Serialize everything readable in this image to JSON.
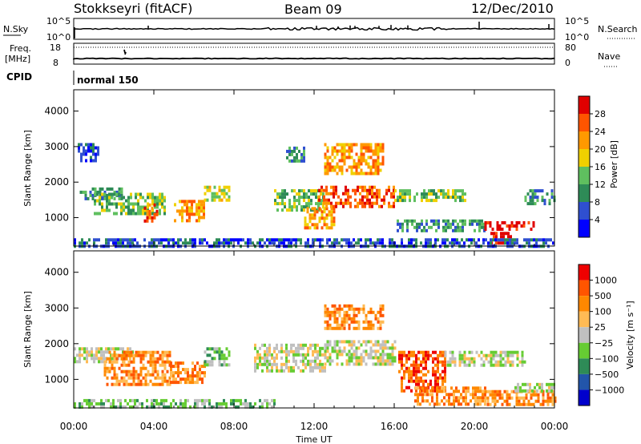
{
  "header": {
    "station": "Stokkseyri (fitACF)",
    "beam": "Beam 09",
    "date": "12/Dec/2010"
  },
  "status_panels": {
    "nsky_label": "N.Sky",
    "nsky_ticks": [
      "10^5",
      "10^0"
    ],
    "nsearch_label": "N.Search",
    "nsearch_ticks": [
      "10^5",
      "10^0"
    ],
    "freq_label": "Freq.",
    "freq_unit": "[MHz]",
    "freq_ticks": [
      "18",
      "8"
    ],
    "nave_label": "Nave",
    "nave_ticks": [
      "80",
      "0"
    ],
    "cpid_label": "CPID",
    "cpid_value": "normal 150"
  },
  "colors": {
    "scale": [
      "#0000ff",
      "#2f4fd0",
      "#2e8b57",
      "#5fbf5f",
      "#f0d000",
      "#ff9900",
      "#ff5500",
      "#e00000"
    ],
    "velocity_scale": [
      "#0000cc",
      "#2255aa",
      "#2e8b57",
      "#66cc33",
      "#c0c0c0",
      "#ffbb55",
      "#ff8800",
      "#ff5500",
      "#ee0000"
    ],
    "ground_scatter": "#b8b8b8"
  },
  "chart_data": [
    {
      "type": "heatmap",
      "name_panel": "power",
      "ylabel": "Slant Range [km]",
      "y_ticks": [
        1000,
        2000,
        3000,
        4000
      ],
      "ylim": [
        200,
        4600
      ],
      "colorbar": {
        "label": "Power [dB]",
        "ticks": [
          "4",
          "8",
          "12",
          "16",
          "20",
          "24",
          "28"
        ],
        "range": [
          0,
          30
        ]
      },
      "regions": [
        {
          "t0": 0.3,
          "t1": 2.5,
          "r0": 1500,
          "r1": 1850,
          "level": 2
        },
        {
          "t0": 0.2,
          "t1": 1.2,
          "r0": 2600,
          "r1": 3100,
          "level": 1
        },
        {
          "t0": 1.0,
          "t1": 4.5,
          "r0": 1100,
          "r1": 1700,
          "level": 3
        },
        {
          "t0": 3.5,
          "t1": 4.2,
          "r0": 900,
          "r1": 1400,
          "level": 6
        },
        {
          "t0": 5.0,
          "t1": 6.5,
          "r0": 900,
          "r1": 1500,
          "level": 5
        },
        {
          "t0": 6.5,
          "t1": 7.8,
          "r0": 1500,
          "r1": 1900,
          "level": 4
        },
        {
          "t0": 10.0,
          "t1": 12.5,
          "r0": 1200,
          "r1": 1800,
          "level": 3
        },
        {
          "t0": 10.6,
          "t1": 11.5,
          "r0": 2600,
          "r1": 3000,
          "level": 2
        },
        {
          "t0": 11.5,
          "t1": 13.0,
          "r0": 700,
          "r1": 1300,
          "level": 5
        },
        {
          "t0": 12.2,
          "t1": 16.0,
          "r0": 1300,
          "r1": 1900,
          "level": 6
        },
        {
          "t0": 12.5,
          "t1": 15.5,
          "r0": 2200,
          "r1": 3100,
          "level": 5
        },
        {
          "t0": 16.0,
          "t1": 19.5,
          "r0": 1500,
          "r1": 1800,
          "level": 3
        },
        {
          "t0": 16.0,
          "t1": 20.5,
          "r0": 600,
          "r1": 950,
          "level": 2
        },
        {
          "t0": 20.5,
          "t1": 23.0,
          "r0": 700,
          "r1": 900,
          "level": 7
        },
        {
          "t0": 20.8,
          "t1": 21.8,
          "r0": 250,
          "r1": 600,
          "level": 7
        },
        {
          "t0": 22.5,
          "t1": 24.0,
          "r0": 1400,
          "r1": 1800,
          "level": 2
        },
        {
          "t0": 0.0,
          "t1": 24.0,
          "r0": 200,
          "r1": 420,
          "level": 1
        }
      ]
    },
    {
      "type": "heatmap",
      "name_panel": "velocity",
      "ylabel": "Slant Range [km]",
      "xlabel": "Time UT",
      "x_ticks": [
        "00:00",
        "04:00",
        "08:00",
        "12:00",
        "16:00",
        "20:00",
        "00:00"
      ],
      "y_ticks": [
        1000,
        2000,
        3000,
        4000
      ],
      "ylim": [
        200,
        4600
      ],
      "colorbar": {
        "label": "Velocity [m s⁻¹]",
        "ticks": [
          "1000",
          "500",
          "100",
          "25",
          "−25",
          "−100",
          "−500",
          "−1000"
        ]
      },
      "regions": [
        {
          "t0": 0.0,
          "t1": 3.0,
          "r0": 1500,
          "r1": 1900,
          "level": 4
        },
        {
          "t0": 1.5,
          "t1": 4.8,
          "r0": 900,
          "r1": 1800,
          "level": 6
        },
        {
          "t0": 4.8,
          "t1": 6.5,
          "r0": 900,
          "r1": 1500,
          "level": 6
        },
        {
          "t0": 6.5,
          "t1": 7.8,
          "r0": 1400,
          "r1": 1900,
          "level": 3
        },
        {
          "t0": 9.0,
          "t1": 12.5,
          "r0": 1200,
          "r1": 2000,
          "level": 4
        },
        {
          "t0": 12.5,
          "t1": 16.0,
          "r0": 1400,
          "r1": 2100,
          "level": 4
        },
        {
          "t0": 12.5,
          "t1": 15.5,
          "r0": 2400,
          "r1": 3100,
          "level": 6
        },
        {
          "t0": 16.2,
          "t1": 18.5,
          "r0": 700,
          "r1": 1800,
          "level": 7
        },
        {
          "t0": 17.0,
          "t1": 20.5,
          "r0": 300,
          "r1": 800,
          "level": 6
        },
        {
          "t0": 18.5,
          "t1": 22.5,
          "r0": 1400,
          "r1": 1800,
          "level": 4
        },
        {
          "t0": 20.5,
          "t1": 24.0,
          "r0": 300,
          "r1": 700,
          "level": 6
        },
        {
          "t0": 22.0,
          "t1": 24.0,
          "r0": 700,
          "r1": 900,
          "level": 4
        },
        {
          "t0": 0.0,
          "t1": 10.0,
          "r0": 200,
          "r1": 450,
          "level": 3
        }
      ]
    }
  ]
}
